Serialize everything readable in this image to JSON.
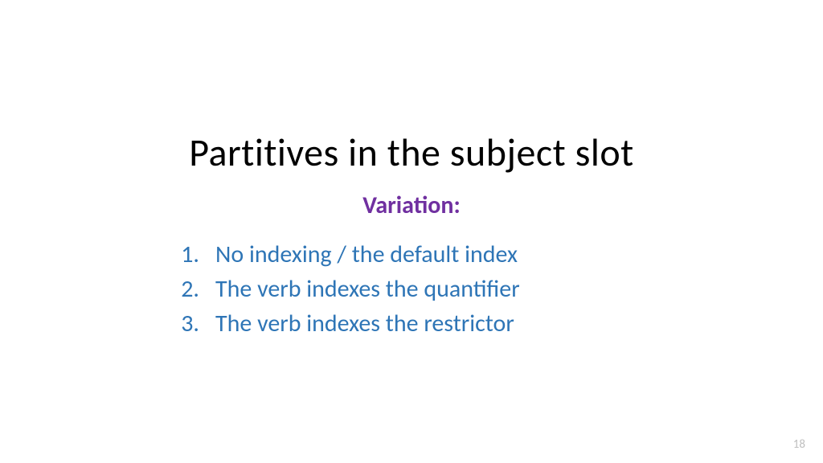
{
  "slide": {
    "title": "Partitives in the subject slot",
    "subtitle": "Variation:",
    "items": [
      {
        "number": "1.",
        "text": "No indexing / the default index"
      },
      {
        "number": "2.",
        "text": "The verb indexes the quantifier"
      },
      {
        "number": "3.",
        "text": "The verb indexes the restrictor"
      }
    ],
    "page_number": "18"
  },
  "style": {
    "background_color": "#ffffff",
    "title_color": "#000000",
    "title_fontsize": 48,
    "subtitle_color": "#7030a0",
    "subtitle_fontsize": 30,
    "list_color": "#2e75b6",
    "list_fontsize": 30,
    "page_number_color": "#bfbfbf",
    "page_number_fontsize": 15
  }
}
